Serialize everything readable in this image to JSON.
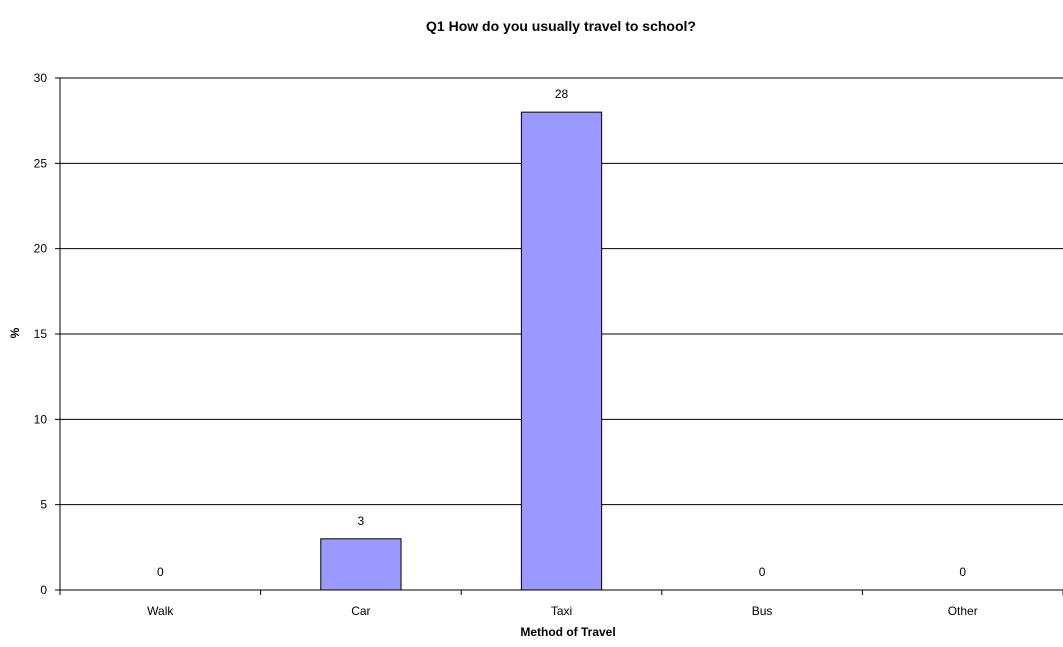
{
  "chart_data": {
    "type": "bar",
    "title": "Q1 How do you usually travel to school?",
    "xlabel": "Method of Travel",
    "ylabel": "%",
    "categories": [
      "Walk",
      "Car",
      "Taxi",
      "Bus",
      "Other"
    ],
    "values": [
      0,
      3,
      28,
      0,
      0
    ],
    "ylim": [
      0,
      30
    ],
    "yticks": [
      0,
      5,
      10,
      15,
      20,
      25,
      30
    ],
    "grid": true,
    "bar_color": "#9999ff",
    "bar_stroke": "#000000",
    "data_labels": true
  }
}
